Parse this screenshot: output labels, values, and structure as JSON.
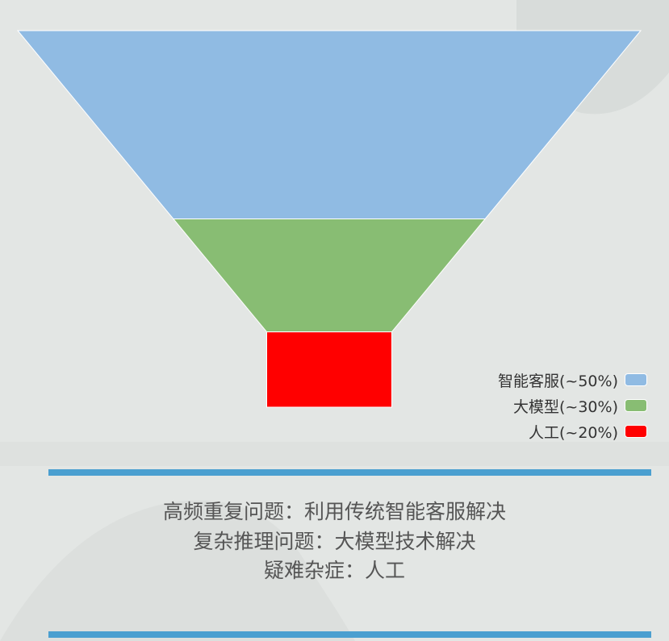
{
  "colors": {
    "page_background": "#e3e6e4",
    "accent_bar": "#4a9fd0",
    "text": "#555555"
  },
  "chart_data": {
    "type": "funnel",
    "title": "",
    "categories": [
      "智能客服(~50%)",
      "大模型(~30%)",
      "人工(~20%)"
    ],
    "values": [
      50,
      30,
      20
    ],
    "colors": [
      "#90bbe3",
      "#88bd73",
      "#ff0000"
    ],
    "legend_position": "bottom-right"
  },
  "caption": {
    "lines": [
      "高频重复问题：利用传统智能客服解决",
      "复杂推理问题：大模型技术解决",
      "疑难杂症：人工"
    ]
  }
}
